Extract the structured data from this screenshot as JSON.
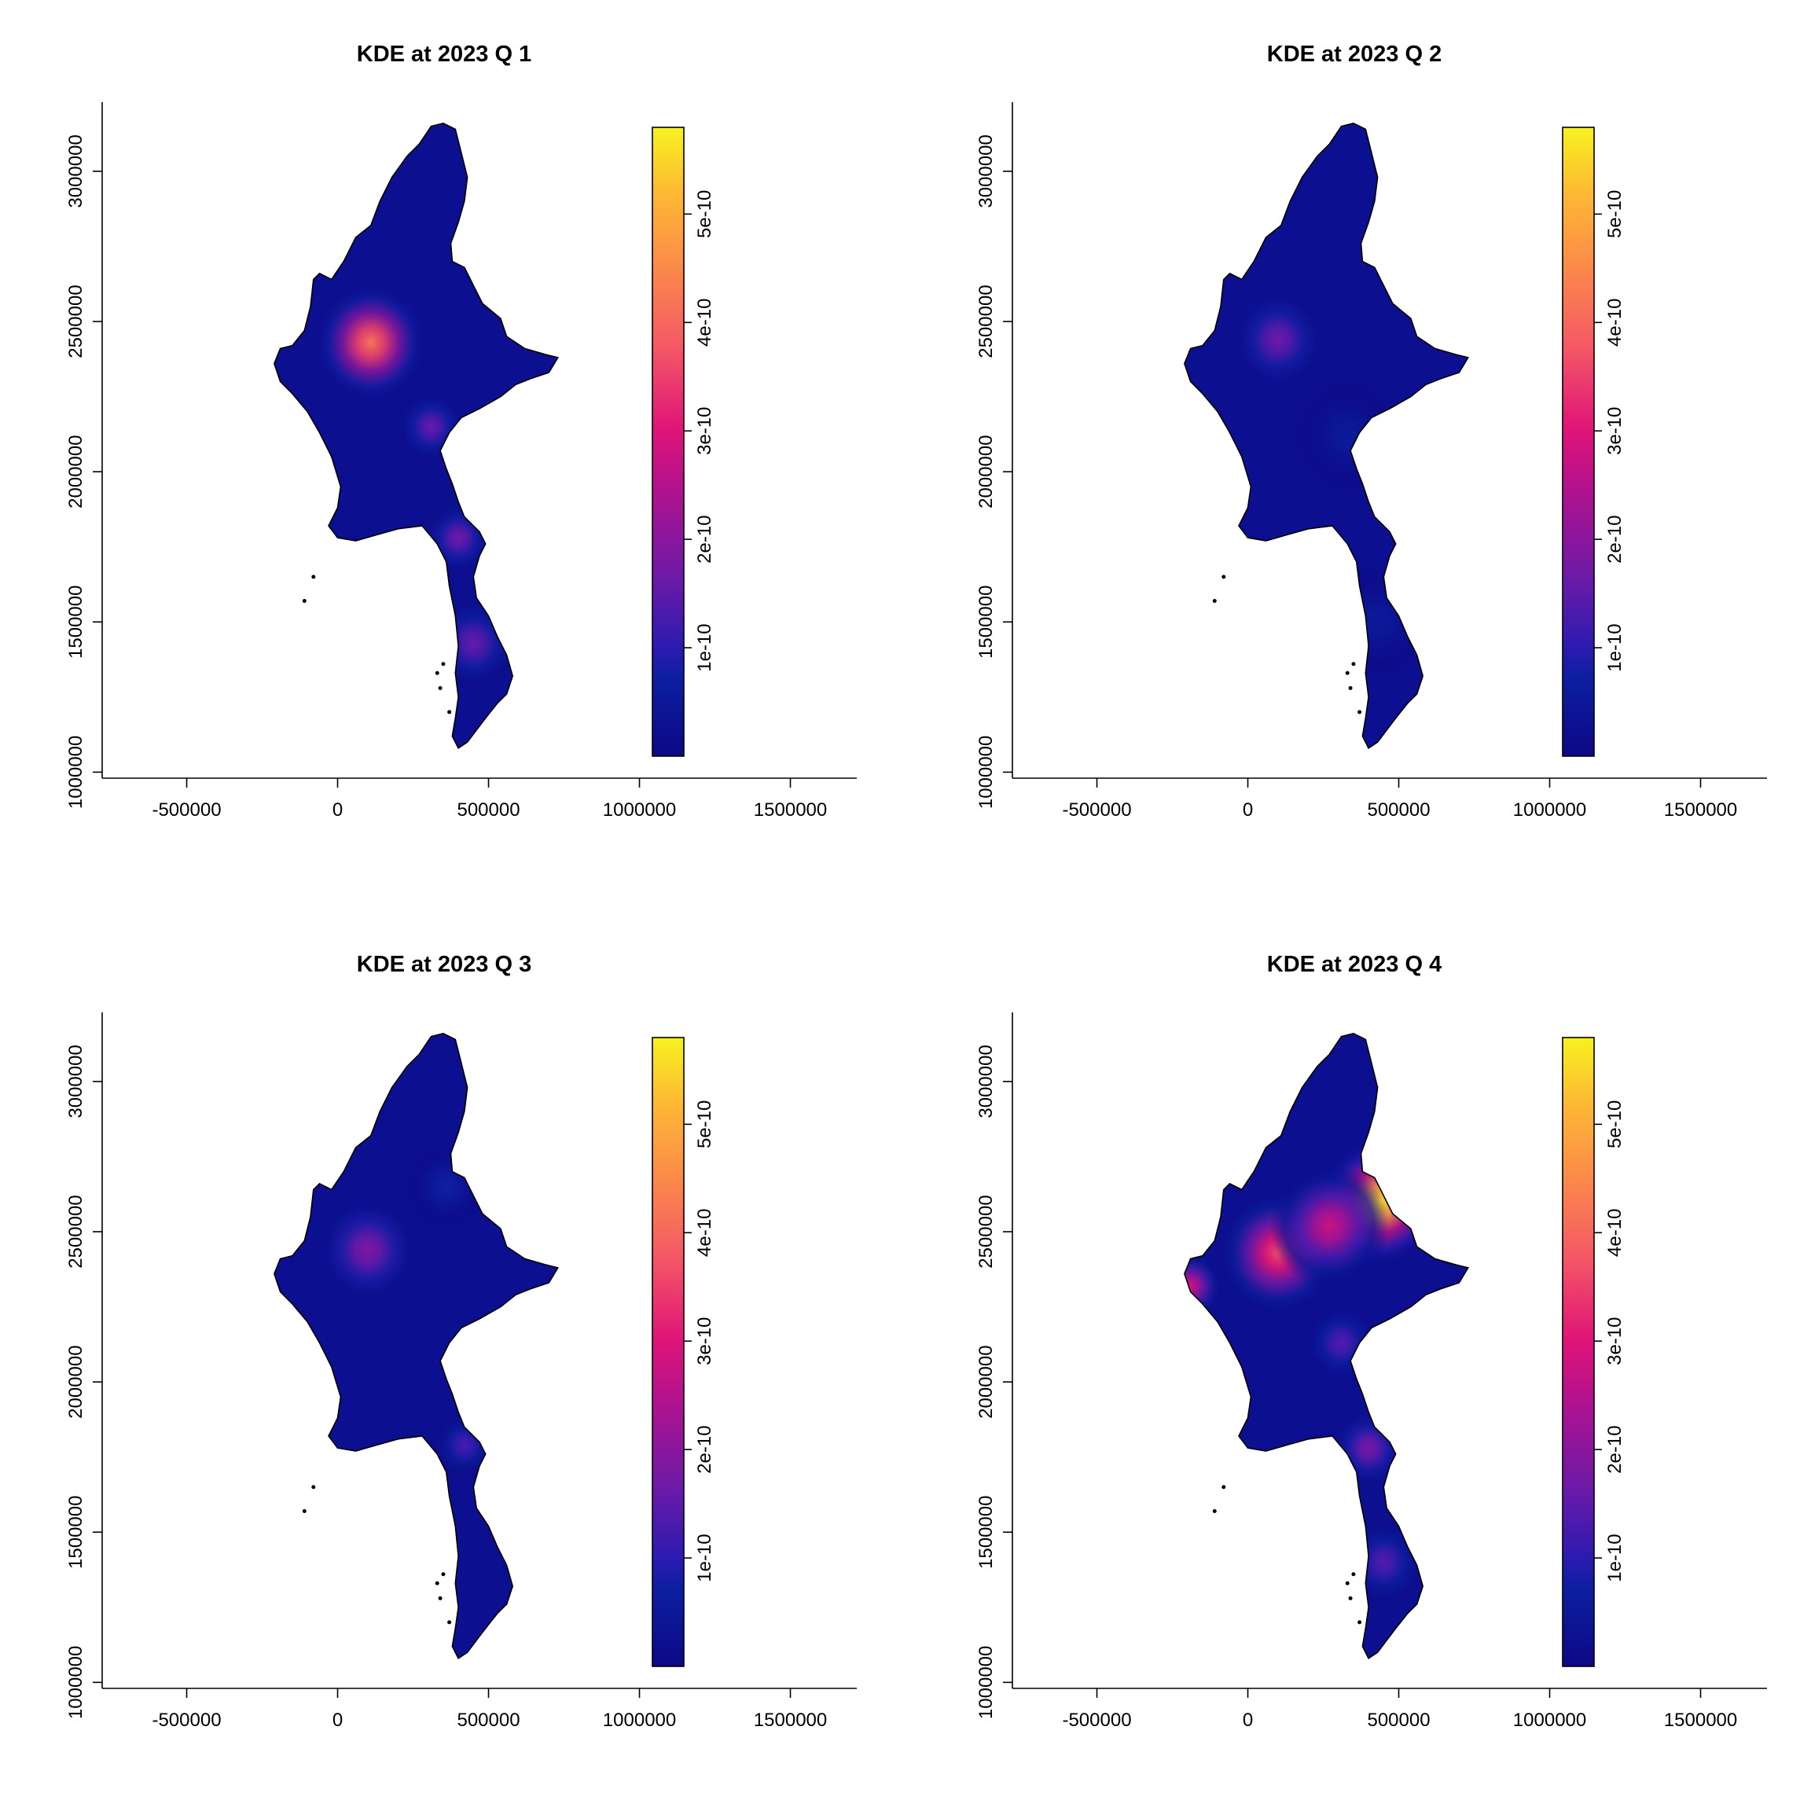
{
  "chart_data": [
    {
      "type": "heatmap",
      "title": "KDE at 2023 Q 1",
      "x_ticks": [
        "-500000",
        "0",
        "500000",
        "1000000",
        "1500000"
      ],
      "y_ticks": [
        "1000000",
        "1500000",
        "2000000",
        "2500000",
        "3000000"
      ],
      "xlim": [
        -780000,
        1720000
      ],
      "ylim": [
        980000,
        3230000
      ],
      "colorbar": {
        "ticks": [
          "1e-10",
          "2e-10",
          "3e-10",
          "4e-10",
          "5e-10"
        ],
        "range": [
          0,
          5.8e-10
        ]
      },
      "hotspots": [
        {
          "x": 110000,
          "y": 2430000,
          "density": 4.2e-10,
          "spread": 85000
        },
        {
          "x": 310000,
          "y": 2150000,
          "density": 1.6e-10,
          "spread": 55000
        },
        {
          "x": 400000,
          "y": 1780000,
          "density": 1.7e-10,
          "spread": 55000
        },
        {
          "x": 450000,
          "y": 1430000,
          "density": 1.6e-10,
          "spread": 70000
        }
      ]
    },
    {
      "type": "heatmap",
      "title": "KDE at 2023 Q 2",
      "x_ticks": [
        "-500000",
        "0",
        "500000",
        "1000000",
        "1500000"
      ],
      "y_ticks": [
        "1000000",
        "1500000",
        "2000000",
        "2500000",
        "3000000"
      ],
      "xlim": [
        -780000,
        1720000
      ],
      "ylim": [
        980000,
        3230000
      ],
      "colorbar": {
        "ticks": [
          "1e-10",
          "2e-10",
          "3e-10",
          "4e-10",
          "5e-10"
        ],
        "range": [
          0,
          5.8e-10
        ]
      },
      "hotspots": [
        {
          "x": 100000,
          "y": 2440000,
          "density": 1.7e-10,
          "spread": 75000
        },
        {
          "x": 330000,
          "y": 2120000,
          "density": 6e-11,
          "spread": 80000
        },
        {
          "x": 430000,
          "y": 1500000,
          "density": 6e-11,
          "spread": 80000
        }
      ]
    },
    {
      "type": "heatmap",
      "title": "KDE at 2023 Q 3",
      "x_ticks": [
        "-500000",
        "0",
        "500000",
        "1000000",
        "1500000"
      ],
      "y_ticks": [
        "1000000",
        "1500000",
        "2000000",
        "2500000",
        "3000000"
      ],
      "xlim": [
        -780000,
        1720000
      ],
      "ylim": [
        980000,
        3230000
      ],
      "colorbar": {
        "ticks": [
          "1e-10",
          "2e-10",
          "3e-10",
          "4e-10",
          "5e-10"
        ],
        "range": [
          0,
          5.8e-10
        ]
      },
      "hotspots": [
        {
          "x": 100000,
          "y": 2440000,
          "density": 1.9e-10,
          "spread": 80000
        },
        {
          "x": 420000,
          "y": 1790000,
          "density": 1.3e-10,
          "spread": 50000
        },
        {
          "x": 360000,
          "y": 2650000,
          "density": 8e-11,
          "spread": 60000
        }
      ]
    },
    {
      "type": "heatmap",
      "title": "KDE at 2023 Q 4",
      "x_ticks": [
        "-500000",
        "0",
        "500000",
        "1000000",
        "1500000"
      ],
      "y_ticks": [
        "1000000",
        "1500000",
        "2000000",
        "2500000",
        "3000000"
      ],
      "xlim": [
        -780000,
        1720000
      ],
      "ylim": [
        980000,
        3230000
      ],
      "colorbar": {
        "ticks": [
          "1e-10",
          "2e-10",
          "3e-10",
          "4e-10",
          "5e-10"
        ],
        "range": [
          0,
          5.8e-10
        ]
      },
      "hotspots": [
        {
          "x": 440000,
          "y": 2600000,
          "density": 5.6e-10,
          "spread": 90000
        },
        {
          "x": 100000,
          "y": 2430000,
          "density": 3.6e-10,
          "spread": 90000
        },
        {
          "x": 270000,
          "y": 2520000,
          "density": 2.8e-10,
          "spread": 90000
        },
        {
          "x": -190000,
          "y": 2320000,
          "density": 2.8e-10,
          "spread": 50000
        },
        {
          "x": 400000,
          "y": 1780000,
          "density": 1.8e-10,
          "spread": 60000
        },
        {
          "x": 310000,
          "y": 2130000,
          "density": 1.4e-10,
          "spread": 60000
        },
        {
          "x": 450000,
          "y": 1400000,
          "density": 1.4e-10,
          "spread": 65000
        }
      ]
    }
  ]
}
